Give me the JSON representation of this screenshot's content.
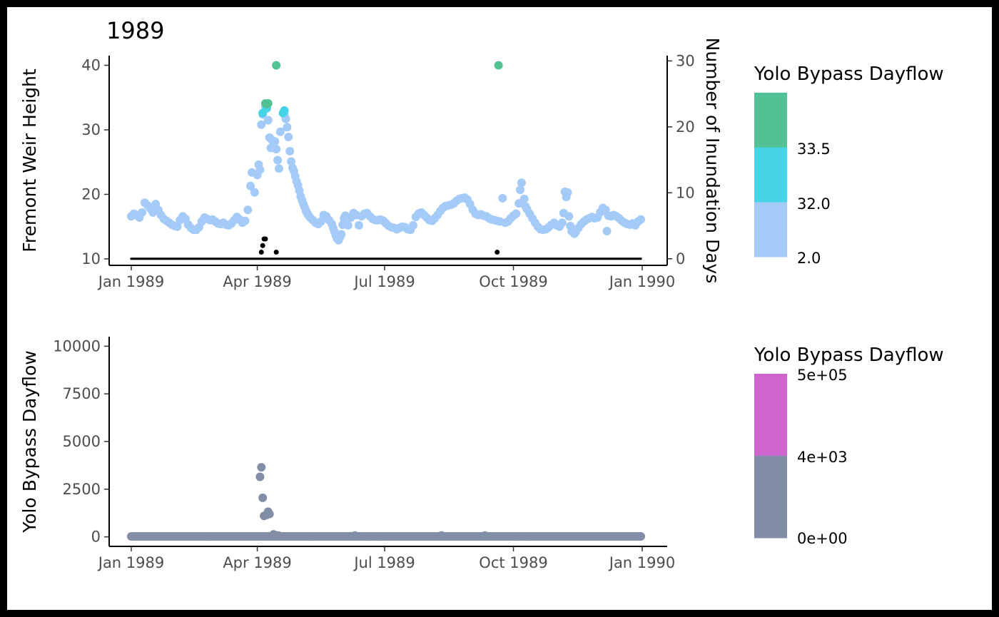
{
  "chart_data": [
    {
      "type": "scatter",
      "title": "1989",
      "xlabel": "",
      "ylabel": "Fremont Weir Height",
      "ylabel_right": "Number of Inundation Days",
      "x_ticks": [
        "Jan 1989",
        "Apr 1989",
        "Jul 1989",
        "Oct 1989",
        "Jan 1990"
      ],
      "y_ticks": [
        "10",
        "20",
        "30",
        "40"
      ],
      "y_ticks_right": [
        "0",
        "10",
        "20",
        "30"
      ],
      "ylim": [
        9,
        41.5
      ],
      "ylim_right": [
        -1,
        30.8
      ],
      "legend": {
        "title": "Yolo Bypass Dayflow",
        "labels": [
          "33.5",
          "32.0",
          "2.0"
        ],
        "colors": [
          "#52c194",
          "#45d3e6",
          "#a4cbf8"
        ],
        "position": "right"
      },
      "series": [
        {
          "values_note_unused": "",
          "color": "#a4cbf8",
          "points": [
            [
              1,
              16.6
            ],
            [
              3,
              17.0
            ],
            [
              5,
              16.8
            ],
            [
              7,
              16.4
            ],
            [
              9,
              17.2
            ],
            [
              11,
              18.7
            ],
            [
              13,
              18.3
            ],
            [
              15,
              17.8
            ],
            [
              17,
              17.2
            ],
            [
              19,
              18.5
            ],
            [
              21,
              17.6
            ],
            [
              23,
              16.8
            ],
            [
              25,
              16.2
            ],
            [
              27,
              15.9
            ],
            [
              29,
              15.6
            ],
            [
              31,
              15.3
            ],
            [
              33,
              15.1
            ],
            [
              35,
              15.0
            ],
            [
              37,
              16.0
            ],
            [
              39,
              16.6
            ],
            [
              41,
              16.2
            ],
            [
              43,
              15.3
            ],
            [
              45,
              14.8
            ],
            [
              47,
              14.5
            ],
            [
              49,
              14.5
            ],
            [
              51,
              14.9
            ],
            [
              53,
              15.8
            ],
            [
              55,
              16.4
            ],
            [
              57,
              16.2
            ],
            [
              59,
              16.0
            ],
            [
              61,
              16.1
            ],
            [
              63,
              15.8
            ],
            [
              65,
              15.5
            ],
            [
              67,
              15.4
            ],
            [
              69,
              15.6
            ],
            [
              71,
              15.3
            ],
            [
              73,
              15.2
            ],
            [
              75,
              15.5
            ],
            [
              77,
              16.0
            ],
            [
              79,
              16.5
            ],
            [
              81,
              16.1
            ],
            [
              83,
              15.6
            ],
            [
              85,
              15.9
            ],
            [
              87,
              17.6
            ],
            [
              89,
              21.3
            ],
            [
              90,
              23.4
            ],
            [
              92,
              20.3
            ],
            [
              94,
              23.0
            ],
            [
              95,
              24.6
            ],
            [
              96,
              23.8
            ],
            [
              97,
              30.8
            ],
            [
              98,
              32.4
            ],
            [
              100,
              33.6
            ],
            [
              101,
              33.3
            ],
            [
              102,
              31.5
            ],
            [
              103,
              28.8
            ],
            [
              104,
              27.2
            ],
            [
              105,
              28.4
            ],
            [
              106,
              27.5
            ],
            [
              107,
              28.2
            ],
            [
              108,
              27.0
            ],
            [
              109,
              25.3
            ],
            [
              110,
              24.0
            ],
            [
              111,
              29.7
            ],
            [
              114,
              32.4
            ],
            [
              115,
              31.7
            ],
            [
              116,
              30.4
            ],
            [
              117,
              28.9
            ],
            [
              118,
              26.7
            ],
            [
              119,
              25.1
            ],
            [
              120,
              24.1
            ],
            [
              121,
              23.6
            ],
            [
              122,
              22.8
            ],
            [
              123,
              22.0
            ],
            [
              124,
              21.4
            ],
            [
              125,
              20.6
            ],
            [
              126,
              19.7
            ],
            [
              127,
              19.1
            ],
            [
              128,
              18.5
            ],
            [
              129,
              18.0
            ],
            [
              130,
              17.4
            ],
            [
              131,
              17.0
            ],
            [
              132,
              16.7
            ],
            [
              133,
              16.4
            ],
            [
              135,
              16.0
            ],
            [
              137,
              15.6
            ],
            [
              139,
              15.4
            ],
            [
              141,
              15.8
            ],
            [
              143,
              16.8
            ],
            [
              145,
              16.6
            ],
            [
              147,
              16.0
            ],
            [
              149,
              15.4
            ],
            [
              150,
              14.8
            ],
            [
              151,
              14.2
            ],
            [
              152,
              13.6
            ],
            [
              153,
              13.1
            ],
            [
              154,
              12.9
            ],
            [
              155,
              13.4
            ],
            [
              156,
              13.8
            ],
            [
              157,
              15.3
            ],
            [
              158,
              16.3
            ],
            [
              159,
              16.7
            ],
            [
              161,
              15.2
            ],
            [
              163,
              16.4
            ],
            [
              165,
              17.1
            ],
            [
              167,
              16.8
            ],
            [
              169,
              15.2
            ],
            [
              171,
              16.6
            ],
            [
              173,
              17.0
            ],
            [
              175,
              17.1
            ],
            [
              177,
              16.6
            ],
            [
              179,
              16.2
            ],
            [
              181,
              16.0
            ],
            [
              183,
              16.0
            ],
            [
              185,
              16.1
            ],
            [
              187,
              15.9
            ],
            [
              189,
              15.5
            ],
            [
              191,
              15.1
            ],
            [
              193,
              14.9
            ],
            [
              195,
              14.8
            ],
            [
              197,
              14.6
            ],
            [
              199,
              14.8
            ],
            [
              201,
              15.0
            ],
            [
              203,
              14.9
            ],
            [
              205,
              14.6
            ],
            [
              207,
              14.5
            ],
            [
              209,
              15.2
            ],
            [
              211,
              16.5
            ],
            [
              213,
              17.0
            ],
            [
              215,
              17.2
            ],
            [
              217,
              16.8
            ],
            [
              219,
              16.4
            ],
            [
              221,
              16.0
            ],
            [
              223,
              15.9
            ],
            [
              225,
              16.3
            ],
            [
              227,
              16.8
            ],
            [
              229,
              17.4
            ],
            [
              231,
              17.9
            ],
            [
              233,
              18.2
            ],
            [
              235,
              18.3
            ],
            [
              237,
              18.4
            ],
            [
              239,
              18.6
            ],
            [
              241,
              19.0
            ],
            [
              243,
              19.3
            ],
            [
              245,
              19.4
            ],
            [
              247,
              19.5
            ],
            [
              249,
              19.2
            ],
            [
              251,
              18.5
            ],
            [
              253,
              17.6
            ],
            [
              255,
              17.0
            ],
            [
              257,
              16.8
            ],
            [
              259,
              16.9
            ],
            [
              261,
              16.7
            ],
            [
              263,
              16.6
            ],
            [
              265,
              16.3
            ],
            [
              267,
              16.1
            ],
            [
              269,
              16.0
            ],
            [
              271,
              15.9
            ],
            [
              273,
              15.8
            ],
            [
              275,
              19.4
            ],
            [
              277,
              15.6
            ],
            [
              279,
              15.8
            ],
            [
              281,
              16.3
            ],
            [
              283,
              16.7
            ],
            [
              285,
              17.0
            ],
            [
              287,
              18.6
            ],
            [
              288,
              20.7
            ],
            [
              289,
              21.8
            ],
            [
              291,
              19.3
            ],
            [
              292,
              18.1
            ],
            [
              293,
              17.7
            ],
            [
              295,
              17.0
            ],
            [
              297,
              16.3
            ],
            [
              299,
              15.6
            ],
            [
              301,
              15.0
            ],
            [
              303,
              14.6
            ],
            [
              305,
              14.5
            ],
            [
              307,
              14.6
            ],
            [
              309,
              14.9
            ],
            [
              311,
              15.3
            ],
            [
              313,
              15.6
            ],
            [
              315,
              15.2
            ],
            [
              317,
              15.0
            ],
            [
              319,
              15.6
            ],
            [
              320,
              17.1
            ],
            [
              321,
              20.4
            ],
            [
              322,
              19.6
            ],
            [
              323,
              20.3
            ],
            [
              324,
              16.6
            ],
            [
              325,
              15.1
            ],
            [
              326,
              14.3
            ],
            [
              328,
              13.9
            ],
            [
              329,
              14.2
            ],
            [
              331,
              14.8
            ],
            [
              333,
              15.4
            ],
            [
              335,
              15.8
            ],
            [
              337,
              16.1
            ],
            [
              339,
              16.3
            ],
            [
              341,
              16.5
            ],
            [
              343,
              16.3
            ],
            [
              345,
              16.4
            ],
            [
              347,
              17.2
            ],
            [
              349,
              17.9
            ],
            [
              351,
              17.6
            ],
            [
              352,
              14.3
            ],
            [
              353,
              16.7
            ],
            [
              355,
              16.6
            ],
            [
              357,
              16.8
            ],
            [
              359,
              16.6
            ],
            [
              361,
              16.3
            ],
            [
              363,
              15.9
            ],
            [
              365,
              15.6
            ],
            [
              367,
              15.4
            ],
            [
              369,
              15.3
            ],
            [
              371,
              15.5
            ],
            [
              373,
              15.2
            ],
            [
              375,
              15.8
            ],
            [
              377,
              16.1
            ]
          ]
        },
        {
          "color": "#45d3e6",
          "points": [
            [
              98,
              32.6
            ],
            [
              101,
              33.4
            ],
            [
              113,
              32.6
            ],
            [
              114,
              33.0
            ]
          ]
        },
        {
          "color": "#52c194",
          "points": [
            [
              100,
              34.1
            ],
            [
              101,
              34.0
            ],
            [
              102,
              34.1
            ],
            [
              108,
              40.0
            ],
            [
              272,
              40.0
            ]
          ]
        }
      ],
      "secondary_series": {
        "name": "",
        "color": "#000000",
        "note_range": [
          1,
          377
        ],
        "baseline_value": 0,
        "spikes": [
          [
            97,
            1
          ],
          [
            98,
            2
          ],
          [
            99,
            3
          ],
          [
            100,
            3
          ],
          [
            108,
            1
          ],
          [
            271,
            1
          ]
        ]
      }
    },
    {
      "type": "scatter",
      "title": "",
      "xlabel": "",
      "ylabel": "Yolo Bypass Dayflow",
      "x_ticks": [
        "Jan 1989",
        "Apr 1989",
        "Jul 1989",
        "Oct 1989",
        "Jan 1990"
      ],
      "y_ticks": [
        "0",
        "2500",
        "5000",
        "7500",
        "10000"
      ],
      "ylim": [
        -500,
        10500
      ],
      "legend": {
        "title": "Yolo Bypass Dayflow",
        "labels": [
          "5e+05",
          "4e+03",
          "0e+00"
        ],
        "colors": [
          "#d065d0",
          "#818ea6"
        ],
        "position": "right"
      },
      "series": [
        {
          "color": "#818ea6",
          "baseline_range": [
            1,
            377
          ],
          "baseline_value": 25,
          "points": [
            [
              96,
              3150
            ],
            [
              97,
              3650
            ],
            [
              98,
              2050
            ],
            [
              99,
              1100
            ],
            [
              101,
              1150
            ],
            [
              102,
              1320
            ],
            [
              103,
              1200
            ],
            [
              106,
              130
            ],
            [
              108,
              80
            ],
            [
              110,
              60
            ],
            [
              166,
              70
            ],
            [
              230,
              75
            ],
            [
              262,
              70
            ]
          ]
        }
      ]
    }
  ]
}
